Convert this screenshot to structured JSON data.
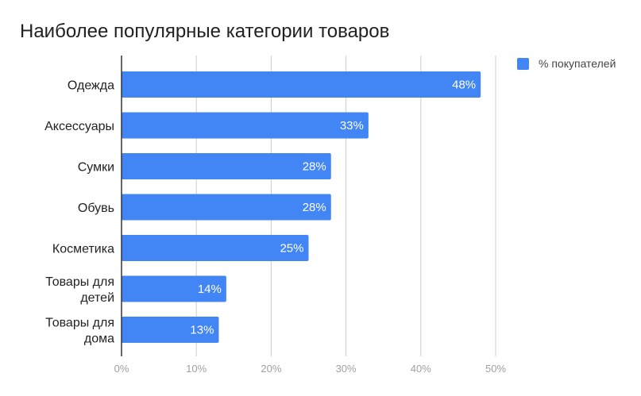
{
  "chart_data": {
    "type": "bar",
    "orientation": "horizontal",
    "title": "Наиболее популярные категории товаров",
    "categories": [
      [
        "Одежда"
      ],
      [
        "Аксессуары"
      ],
      [
        "Сумки"
      ],
      [
        "Обувь"
      ],
      [
        "Косметика"
      ],
      [
        "Товары для",
        "детей"
      ],
      [
        "Товары для",
        "дома"
      ]
    ],
    "series": [
      {
        "name": "% покупателей",
        "values": [
          48,
          33,
          28,
          28,
          25,
          14,
          13
        ],
        "value_labels": [
          "48%",
          "33%",
          "28%",
          "28%",
          "25%",
          "14%",
          "13%"
        ],
        "color": "#4285f4"
      }
    ],
    "xlim": [
      0,
      50
    ],
    "x_ticks": [
      0,
      10,
      20,
      30,
      40,
      50
    ],
    "x_tick_labels": [
      "0%",
      "10%",
      "20%",
      "30%",
      "40%",
      "50%"
    ],
    "grid": true,
    "legend_position": "top-right",
    "colors": {
      "bar": "#4285f4",
      "grid": "#cccccc",
      "axis": "#333333"
    }
  }
}
